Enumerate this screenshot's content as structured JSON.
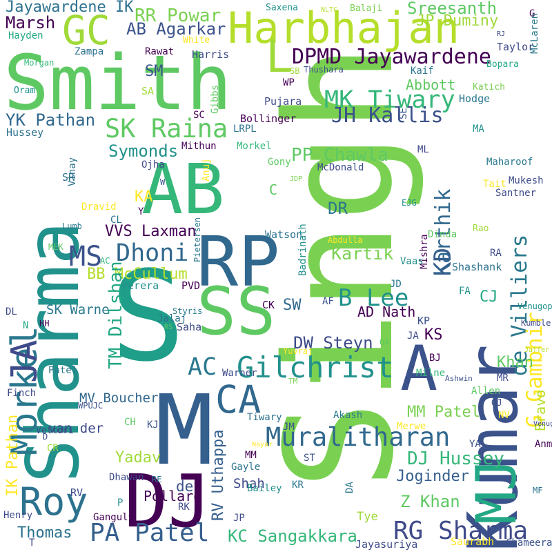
{
  "palette": [
    "#440154",
    "#3b528b",
    "#21918c",
    "#5ec962",
    "#fde725"
  ],
  "words": [
    {
      "t": "Singh",
      "c": "#7ad151"
    },
    {
      "t": "Sharma",
      "c": "#21918c"
    },
    {
      "t": "Smith",
      "c": "#5ec962"
    },
    {
      "t": "Kumar",
      "c": "#3b528b"
    },
    {
      "t": "S",
      "c": "#1f9e89"
    },
    {
      "t": "AB",
      "c": "#35b779"
    },
    {
      "t": "RP",
      "c": "#31688e"
    },
    {
      "t": "MJ",
      "c": "#22a884"
    },
    {
      "t": "M",
      "c": "#355f8d"
    },
    {
      "t": "SS",
      "c": "#5ec962"
    },
    {
      "t": "DJ",
      "c": "#440154"
    },
    {
      "t": "A",
      "c": "#3b528b"
    },
    {
      "t": "Harbhajan",
      "c": "#b5de2b"
    },
    {
      "t": "GC",
      "c": "#a0da39"
    },
    {
      "t": "L",
      "c": "#a0da39"
    },
    {
      "t": "CA",
      "c": "#31688e"
    },
    {
      "t": "Morkel",
      "c": "#2a788e"
    },
    {
      "t": "JA",
      "c": "#3e4a89"
    },
    {
      "t": "Roy",
      "c": "#2c728e"
    },
    {
      "t": "SK Raina",
      "c": "#5ec962"
    },
    {
      "t": "Dhoni",
      "c": "#31688e"
    },
    {
      "t": "MS",
      "c": "#3b528b"
    },
    {
      "t": "Gilchrist",
      "c": "#21918c"
    },
    {
      "t": "AC",
      "c": "#2a788e"
    },
    {
      "t": "Muralitharan",
      "c": "#31688e"
    },
    {
      "t": "PA Patel",
      "c": "#355f8d"
    },
    {
      "t": "RG Sharma",
      "c": "#3e4a89"
    },
    {
      "t": "MK Tiwary",
      "c": "#35b779"
    },
    {
      "t": "JH Kallis",
      "c": "#3b528b"
    },
    {
      "t": "Karthik",
      "c": "#31688e"
    },
    {
      "t": "KD",
      "c": "#355f8d"
    },
    {
      "t": "de Villiers",
      "c": "#2a788e"
    },
    {
      "t": "G Gambhir",
      "c": "#fde725"
    },
    {
      "t": "B Lee",
      "c": "#21918c"
    },
    {
      "t": "DPMD Jayawardene",
      "c": "#440154"
    },
    {
      "t": "Jayawardene IK",
      "c": "#2c728e"
    },
    {
      "t": "RR Powar",
      "c": "#7ad151"
    },
    {
      "t": "AB Agarkar",
      "c": "#3b528b"
    },
    {
      "t": "Sreesanth",
      "c": "#5ec962"
    },
    {
      "t": "JP Duminy",
      "c": "#a0da39"
    },
    {
      "t": "Marsh",
      "c": "#440154"
    },
    {
      "t": "YK Pathan",
      "c": "#31688e"
    },
    {
      "t": "Symonds",
      "c": "#21918c"
    },
    {
      "t": "PP Chawla",
      "c": "#5ec962"
    },
    {
      "t": "VVS Laxman",
      "c": "#440154"
    },
    {
      "t": "M Kartik",
      "c": "#7ad151"
    },
    {
      "t": "BB McCullum",
      "c": "#b5de2b"
    },
    {
      "t": "TM Dilshan",
      "c": "#22a884"
    },
    {
      "t": "DW Steyn",
      "c": "#3e4a89"
    },
    {
      "t": "AD Nath",
      "c": "#440154"
    },
    {
      "t": "MM Patel",
      "c": "#7ad151"
    },
    {
      "t": "DJ Hussey",
      "c": "#35b779"
    },
    {
      "t": "Z Khan",
      "c": "#5ec962"
    },
    {
      "t": "KC Sangakkara",
      "c": "#35b779"
    },
    {
      "t": "RV Uthappa",
      "c": "#355f8d"
    },
    {
      "t": "IK Pathan",
      "c": "#fde725"
    },
    {
      "t": "MV Boucher",
      "c": "#31688e"
    },
    {
      "t": "Thomas",
      "c": "#2c728e"
    },
    {
      "t": "Joginder",
      "c": "#355f8d"
    },
    {
      "t": "Yadav",
      "c": "#a0da39"
    },
    {
      "t": "Khan",
      "c": "#5ec962"
    },
    {
      "t": "Bravo",
      "c": "#b5de2b"
    },
    {
      "t": "Abbott",
      "c": "#5ec962"
    },
    {
      "t": "SM",
      "c": "#3b528b"
    },
    {
      "t": "DR",
      "c": "#2a788e"
    },
    {
      "t": "KS",
      "c": "#440154"
    },
    {
      "t": "CJ",
      "c": "#22a884"
    },
    {
      "t": "SW",
      "c": "#31688e"
    },
    {
      "t": "SK Warne",
      "c": "#2a788e"
    },
    {
      "t": "Hussey",
      "c": "#2c728e"
    },
    {
      "t": "van der",
      "c": "#3e4a89"
    },
    {
      "t": "de",
      "c": "#3b528b"
    },
    {
      "t": "Shah",
      "c": "#3e4a89"
    },
    {
      "t": "Saha",
      "c": "#3e4a89"
    },
    {
      "t": "Watson",
      "c": "#2c728e"
    },
    {
      "t": "Hayden",
      "c": "#22a884"
    },
    {
      "t": "Zampa",
      "c": "#2c728e"
    },
    {
      "t": "Rawat",
      "c": "#440154"
    },
    {
      "t": "White",
      "c": "#fde725"
    },
    {
      "t": "Harris",
      "c": "#3e4a89"
    },
    {
      "t": "Taylor",
      "c": "#3e4a89"
    },
    {
      "t": "Bopara",
      "c": "#22a884"
    },
    {
      "t": "Morgan",
      "c": "#35b779"
    },
    {
      "t": "Oram",
      "c": "#21918c"
    },
    {
      "t": "SA",
      "c": "#a0da39"
    },
    {
      "t": "Thushara",
      "c": "#3b528b"
    },
    {
      "t": "SB",
      "c": "#a0da39"
    },
    {
      "t": "WP",
      "c": "#440154"
    },
    {
      "t": "Kaif",
      "c": "#2c728e"
    },
    {
      "t": "Katich",
      "c": "#7ad151"
    },
    {
      "t": "Hodge",
      "c": "#2a788e"
    },
    {
      "t": "SC",
      "c": "#440154"
    },
    {
      "t": "Gibbs",
      "c": "#5ec962"
    },
    {
      "t": "Pujara",
      "c": "#3e4a89"
    },
    {
      "t": "Bollinger",
      "c": "#440154"
    },
    {
      "t": "LRPL",
      "c": "#2c728e"
    },
    {
      "t": "Mithun",
      "c": "#440154"
    },
    {
      "t": "Morkel",
      "c": "#35b779"
    },
    {
      "t": "SE",
      "c": "#3b528b"
    },
    {
      "t": "MA",
      "c": "#21918c"
    },
    {
      "t": "ML",
      "c": "#3e4a89"
    },
    {
      "t": "Maharoof",
      "c": "#2a788e"
    },
    {
      "t": "Ojha",
      "c": "#3e4a89"
    },
    {
      "t": "Anuj",
      "c": "#fde725"
    },
    {
      "t": "Gony",
      "c": "#5ec962"
    },
    {
      "t": "McDonald",
      "c": "#3e4a89"
    },
    {
      "t": "Vinay",
      "c": "#2c728e"
    },
    {
      "t": "W",
      "c": "#3b528b"
    },
    {
      "t": "JDP",
      "c": "#7ad151"
    },
    {
      "t": "Mukesh",
      "c": "#3e4a89"
    },
    {
      "t": "Tait",
      "c": "#fde725"
    },
    {
      "t": "SR",
      "c": "#2c728e"
    },
    {
      "t": "KA",
      "c": "#fde725"
    },
    {
      "t": "Y",
      "c": "#440154"
    },
    {
      "t": "C",
      "c": "#5ec962"
    },
    {
      "t": "EJG",
      "c": "#21918c"
    },
    {
      "t": "Santner",
      "c": "#3e4a89"
    },
    {
      "t": "Dravid",
      "c": "#fde725"
    },
    {
      "t": "CL",
      "c": "#2c728e"
    },
    {
      "t": "Lumb",
      "c": "#2a788e"
    },
    {
      "t": "Rao",
      "c": "#a0da39"
    },
    {
      "t": "Dinda",
      "c": "#5ec962"
    },
    {
      "t": "Abdulla",
      "c": "#fde725"
    },
    {
      "t": "MEK",
      "c": "#5ec962"
    },
    {
      "t": "Pietersen",
      "c": "#2a788e"
    },
    {
      "t": "Mishra",
      "c": "#440154"
    },
    {
      "t": "AC",
      "c": "#35b779"
    },
    {
      "t": "Badrinath",
      "c": "#21918c"
    },
    {
      "t": "Vaas",
      "c": "#21918c"
    },
    {
      "t": "RA",
      "c": "#3e4a89"
    },
    {
      "t": "Shashank",
      "c": "#2c728e"
    },
    {
      "t": "Perera",
      "c": "#21918c"
    },
    {
      "t": "PVD",
      "c": "#440154"
    },
    {
      "t": "JD",
      "c": "#2a788e"
    },
    {
      "t": "FA",
      "c": "#21918c"
    },
    {
      "t": "Venugopal",
      "c": "#21918c"
    },
    {
      "t": "Styris",
      "c": "#2a788e"
    },
    {
      "t": "CK",
      "c": "#440154"
    },
    {
      "t": "AF",
      "c": "#3b528b"
    },
    {
      "t": "DL",
      "c": "#3e4a89"
    },
    {
      "t": "Jalaj",
      "c": "#2c728e"
    },
    {
      "t": "N",
      "c": "#22a884"
    },
    {
      "t": "HH",
      "c": "#440154"
    },
    {
      "t": "RS",
      "c": "#5ec962"
    },
    {
      "t": "KP",
      "c": "#3b528b"
    },
    {
      "t": "Kumble",
      "c": "#3e4a89"
    },
    {
      "t": "JA",
      "c": "#3e4a89"
    },
    {
      "t": "OA",
      "c": "#5ec962"
    },
    {
      "t": "Yuvraj",
      "c": "#fde725"
    },
    {
      "t": "Jaffer",
      "c": "#b5de2b"
    },
    {
      "t": "Patel",
      "c": "#2a788e"
    },
    {
      "t": "Warner",
      "c": "#3e4a89"
    },
    {
      "t": "JC",
      "c": "#7ad151"
    },
    {
      "t": "BJ",
      "c": "#440154"
    },
    {
      "t": "Milne",
      "c": "#35b779"
    },
    {
      "t": "Ashwin",
      "c": "#3b528b"
    },
    {
      "t": "TM",
      "c": "#7ad151"
    },
    {
      "t": "MR",
      "c": "#3e4a89"
    },
    {
      "t": "Finch",
      "c": "#3e4a89"
    },
    {
      "t": "Allen",
      "c": "#5ec962"
    },
    {
      "t": "WPUJC",
      "c": "#3b528b"
    },
    {
      "t": "GJ",
      "c": "#3b528b"
    },
    {
      "t": "NV",
      "c": "#fde725"
    },
    {
      "t": "Akash",
      "c": "#2a788e"
    },
    {
      "t": "Tiwary",
      "c": "#2c728e"
    },
    {
      "t": "KJ",
      "c": "#3b528b"
    },
    {
      "t": "CH",
      "c": "#5ec962"
    },
    {
      "t": "Vettori",
      "c": "#3e4a89"
    },
    {
      "t": "D",
      "c": "#3e4a89"
    },
    {
      "t": "CR",
      "c": "#a0da39"
    },
    {
      "t": "JM",
      "c": "#3b528b"
    },
    {
      "t": "Merwe",
      "c": "#fde725"
    },
    {
      "t": "Venugopal",
      "c": "#3e4a89"
    },
    {
      "t": "MM",
      "c": "#440154"
    },
    {
      "t": "Nayar",
      "c": "#fde725"
    },
    {
      "t": "YA",
      "c": "#3b528b"
    },
    {
      "t": "Anmolpreet",
      "c": "#440154"
    },
    {
      "t": "ST",
      "c": "#3b528b"
    },
    {
      "t": "Gayle",
      "c": "#2c728e"
    },
    {
      "t": "Dhawan",
      "c": "#3e4a89"
    },
    {
      "t": "RE",
      "c": "#2a788e"
    },
    {
      "t": "Bailey",
      "c": "#21918c"
    },
    {
      "t": "KR",
      "c": "#2a788e"
    },
    {
      "t": "DA",
      "c": "#2a788e"
    },
    {
      "t": "MF",
      "c": "#2c728e"
    },
    {
      "t": "RV",
      "c": "#3e4a89"
    },
    {
      "t": "Pollard",
      "c": "#440154"
    },
    {
      "t": "P",
      "c": "#21918c"
    },
    {
      "t": "RK",
      "c": "#3e4a89"
    },
    {
      "t": "JP",
      "c": "#3e4a89"
    },
    {
      "t": "Ganguly",
      "c": "#440154"
    },
    {
      "t": "Henry",
      "c": "#3e4a89"
    },
    {
      "t": "Tye",
      "c": "#a0da39"
    },
    {
      "t": "T",
      "c": "#3e4a89"
    },
    {
      "t": "Jayasuriya",
      "c": "#3e4a89"
    },
    {
      "t": "Saurabh",
      "c": "#fde725"
    },
    {
      "t": "Chameera",
      "c": "#3b528b"
    },
    {
      "t": "Saxena",
      "c": "#21918c"
    },
    {
      "t": "Balaji",
      "c": "#7ad151"
    },
    {
      "t": "NLTC",
      "c": "#b5de2b"
    },
    {
      "t": "G",
      "c": "#440154"
    },
    {
      "t": "RJ",
      "c": "#3e4a89"
    },
    {
      "t": "McLaren",
      "c": "#2a788e"
    },
    {
      "t": "O",
      "c": "#21918c"
    }
  ]
}
